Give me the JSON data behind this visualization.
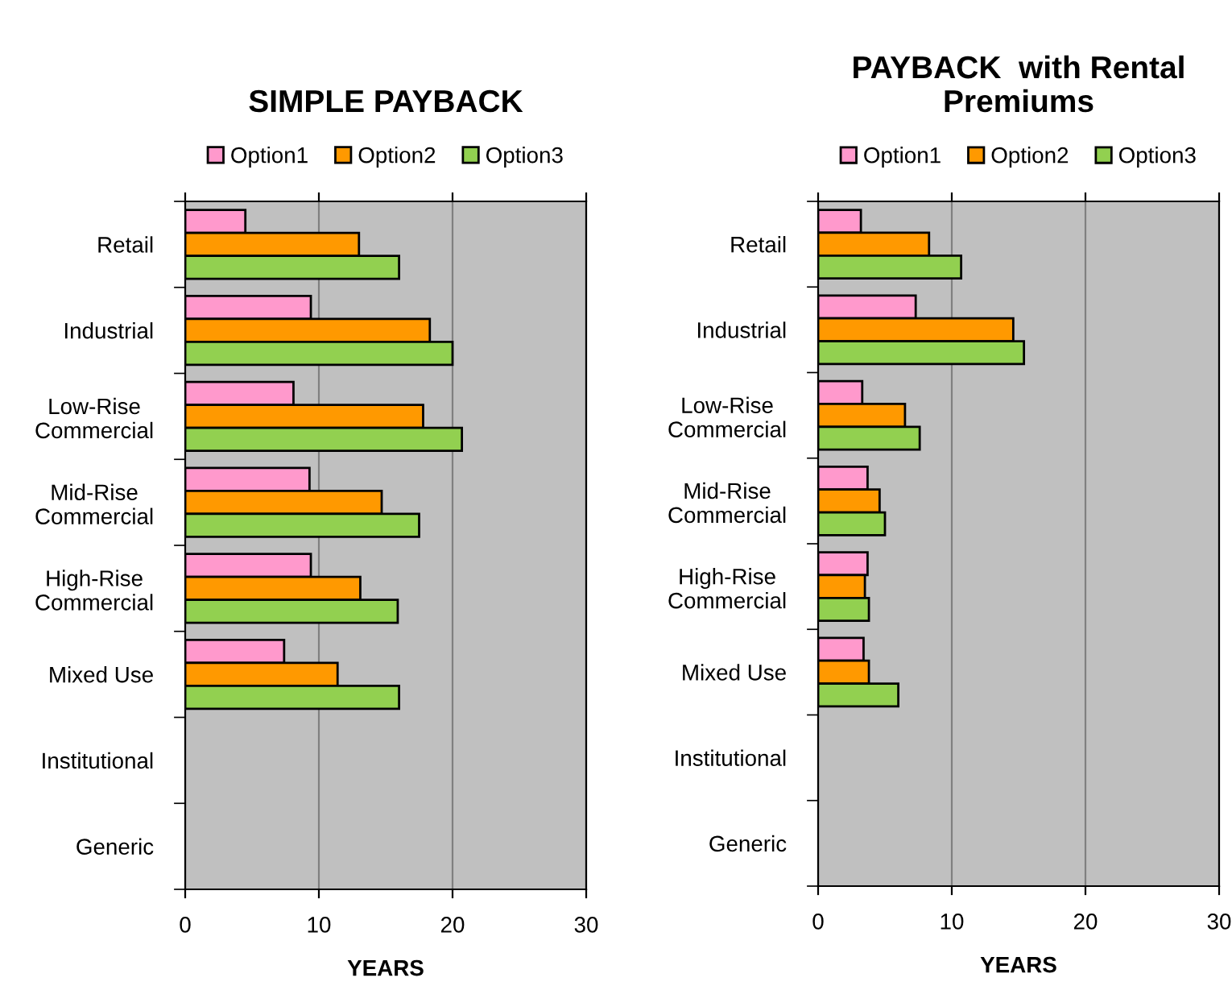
{
  "chart_data": [
    {
      "type": "bar",
      "orientation": "horizontal",
      "title": "SIMPLE PAYBACK",
      "xlabel": "YEARS",
      "categories": [
        "Retail",
        "Industrial",
        "Low-Rise\nCommercial",
        "Mid-Rise\nCommercial",
        "High-Rise\nCommercial",
        "Mixed Use",
        "Institutional",
        "Generic"
      ],
      "series": [
        {
          "name": "Option1",
          "color": "#ff99cc",
          "values": [
            4.5,
            9.4,
            8.1,
            9.3,
            9.4,
            7.4,
            null,
            null
          ]
        },
        {
          "name": "Option2",
          "color": "#ff9900",
          "values": [
            13.0,
            18.3,
            17.8,
            14.7,
            13.1,
            11.4,
            null,
            null
          ]
        },
        {
          "name": "Option3",
          "color": "#92d050",
          "values": [
            16.0,
            20.0,
            20.7,
            17.5,
            15.9,
            16.0,
            null,
            null
          ]
        }
      ],
      "xlim": [
        0,
        30
      ],
      "xticks": [
        0,
        10,
        20,
        30
      ],
      "grid": "x",
      "legend": "top"
    },
    {
      "type": "bar",
      "orientation": "horizontal",
      "title": "PAYBACK  with Rental\nPremiums",
      "xlabel": "YEARS",
      "categories": [
        "Retail",
        "Industrial",
        "Low-Rise\nCommercial",
        "Mid-Rise\nCommercial",
        "High-Rise\nCommercial",
        "Mixed Use",
        "Institutional",
        "Generic"
      ],
      "series": [
        {
          "name": "Option1",
          "color": "#ff99cc",
          "values": [
            3.2,
            7.3,
            3.3,
            3.7,
            3.7,
            3.4,
            null,
            null
          ]
        },
        {
          "name": "Option2",
          "color": "#ff9900",
          "values": [
            8.3,
            14.6,
            6.5,
            4.6,
            3.5,
            3.8,
            null,
            null
          ]
        },
        {
          "name": "Option3",
          "color": "#92d050",
          "values": [
            10.7,
            15.4,
            7.6,
            5.0,
            3.8,
            6.0,
            null,
            null
          ]
        }
      ],
      "xlim": [
        0,
        30
      ],
      "xticks": [
        0,
        10,
        20,
        30
      ],
      "grid": "x",
      "legend": "top"
    }
  ]
}
